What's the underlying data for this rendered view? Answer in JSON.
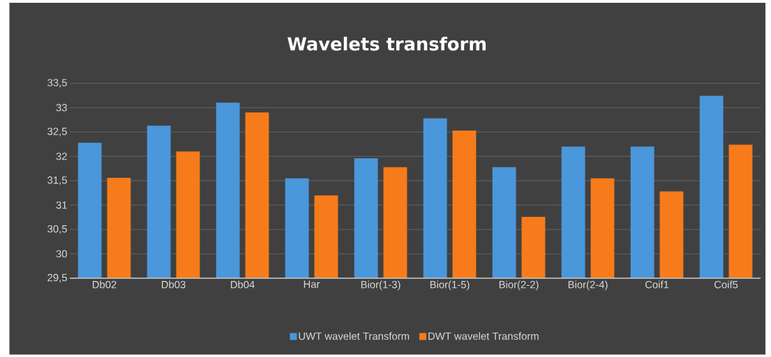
{
  "chart_data": {
    "type": "bar",
    "title": "Wavelets transform",
    "categories": [
      "Db02",
      "Db03",
      "Db04",
      "Har",
      "Bior(1-3)",
      "Bior(1-5)",
      "Bior(2-2)",
      "Bior(2-4)",
      "Coif1",
      "Coif5"
    ],
    "series": [
      {
        "name": "UWT wavelet Transform",
        "color": "#4a97dc",
        "values": [
          32.28,
          32.63,
          33.1,
          31.55,
          31.96,
          32.78,
          31.78,
          32.2,
          32.2,
          33.24
        ]
      },
      {
        "name": "DWT wavelet Transform",
        "color": "#f77b1a",
        "values": [
          31.56,
          32.1,
          32.9,
          31.2,
          31.78,
          32.53,
          30.76,
          31.55,
          31.28,
          32.24
        ]
      }
    ],
    "ylim": [
      29.5,
      33.5
    ],
    "yticks": [
      {
        "value": 29.5,
        "label": "29,5"
      },
      30,
      {
        "value": 30.5,
        "label": "30,5"
      },
      31,
      {
        "value": 31.5,
        "label": "31,5"
      },
      32,
      {
        "value": 32.5,
        "label": "32,5"
      },
      33,
      {
        "value": 33.5,
        "label": "33,5"
      }
    ],
    "grid": "y",
    "legend": "bottom"
  }
}
